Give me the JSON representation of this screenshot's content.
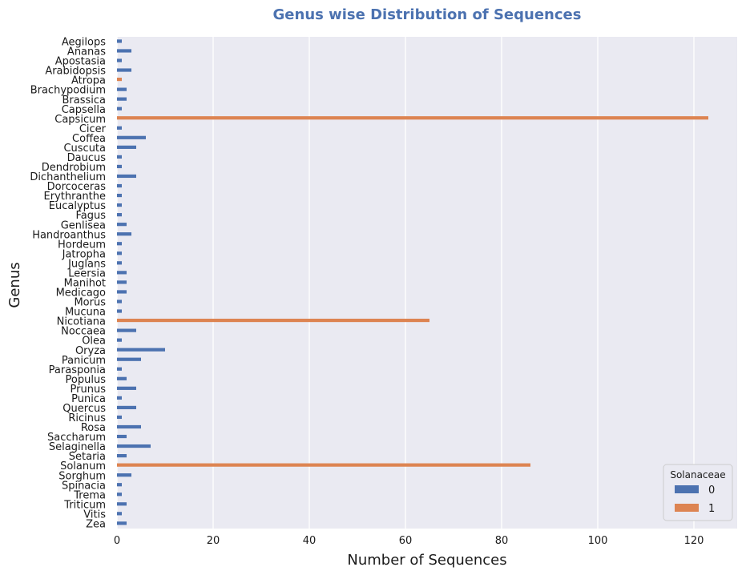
{
  "chart_data": {
    "type": "bar",
    "orientation": "horizontal",
    "title": "Genus wise Distribution of Sequences",
    "xlabel": "Number of Sequences",
    "ylabel": "Genus",
    "xlim": [
      0,
      129
    ],
    "xticks": [
      0,
      20,
      40,
      60,
      80,
      100,
      120
    ],
    "grid": true,
    "legend_title": "Solanaceae",
    "legend_position": "bottom-right",
    "categories": [
      "Aegilops",
      "Ananas",
      "Apostasia",
      "Arabidopsis",
      "Atropa",
      "Brachypodium",
      "Brassica",
      "Capsella",
      "Capsicum",
      "Cicer",
      "Coffea",
      "Cuscuta",
      "Daucus",
      "Dendrobium",
      "Dichanthelium",
      "Dorcoceras",
      "Erythranthe",
      "Eucalyptus",
      "Fagus",
      "Genlisea",
      "Handroanthus",
      "Hordeum",
      "Jatropha",
      "Juglans",
      "Leersia",
      "Manihot",
      "Medicago",
      "Morus",
      "Mucuna",
      "Nicotiana",
      "Noccaea",
      "Olea",
      "Oryza",
      "Panicum",
      "Parasponia",
      "Populus",
      "Prunus",
      "Punica",
      "Quercus",
      "Ricinus",
      "Rosa",
      "Saccharum",
      "Selaginella",
      "Setaria",
      "Solanum",
      "Sorghum",
      "Spinacia",
      "Trema",
      "Triticum",
      "Vitis",
      "Zea"
    ],
    "series": [
      {
        "name": "0",
        "color": "#4c72b0",
        "values": [
          1,
          3,
          1,
          3,
          0,
          2,
          2,
          1,
          0,
          1,
          6,
          4,
          1,
          1,
          4,
          1,
          1,
          1,
          1,
          2,
          3,
          1,
          1,
          1,
          2,
          2,
          2,
          1,
          1,
          0,
          4,
          1,
          10,
          5,
          1,
          2,
          4,
          1,
          4,
          1,
          5,
          2,
          7,
          2,
          0,
          3,
          1,
          1,
          2,
          1,
          2
        ]
      },
      {
        "name": "1",
        "color": "#dd8452",
        "values": [
          0,
          0,
          0,
          0,
          1,
          0,
          0,
          0,
          123,
          0,
          0,
          0,
          0,
          0,
          0,
          0,
          0,
          0,
          0,
          0,
          0,
          0,
          0,
          0,
          0,
          0,
          0,
          0,
          0,
          65,
          0,
          0,
          0,
          0,
          0,
          0,
          0,
          0,
          0,
          0,
          0,
          0,
          0,
          0,
          86,
          0,
          0,
          0,
          0,
          0,
          0
        ]
      }
    ]
  }
}
